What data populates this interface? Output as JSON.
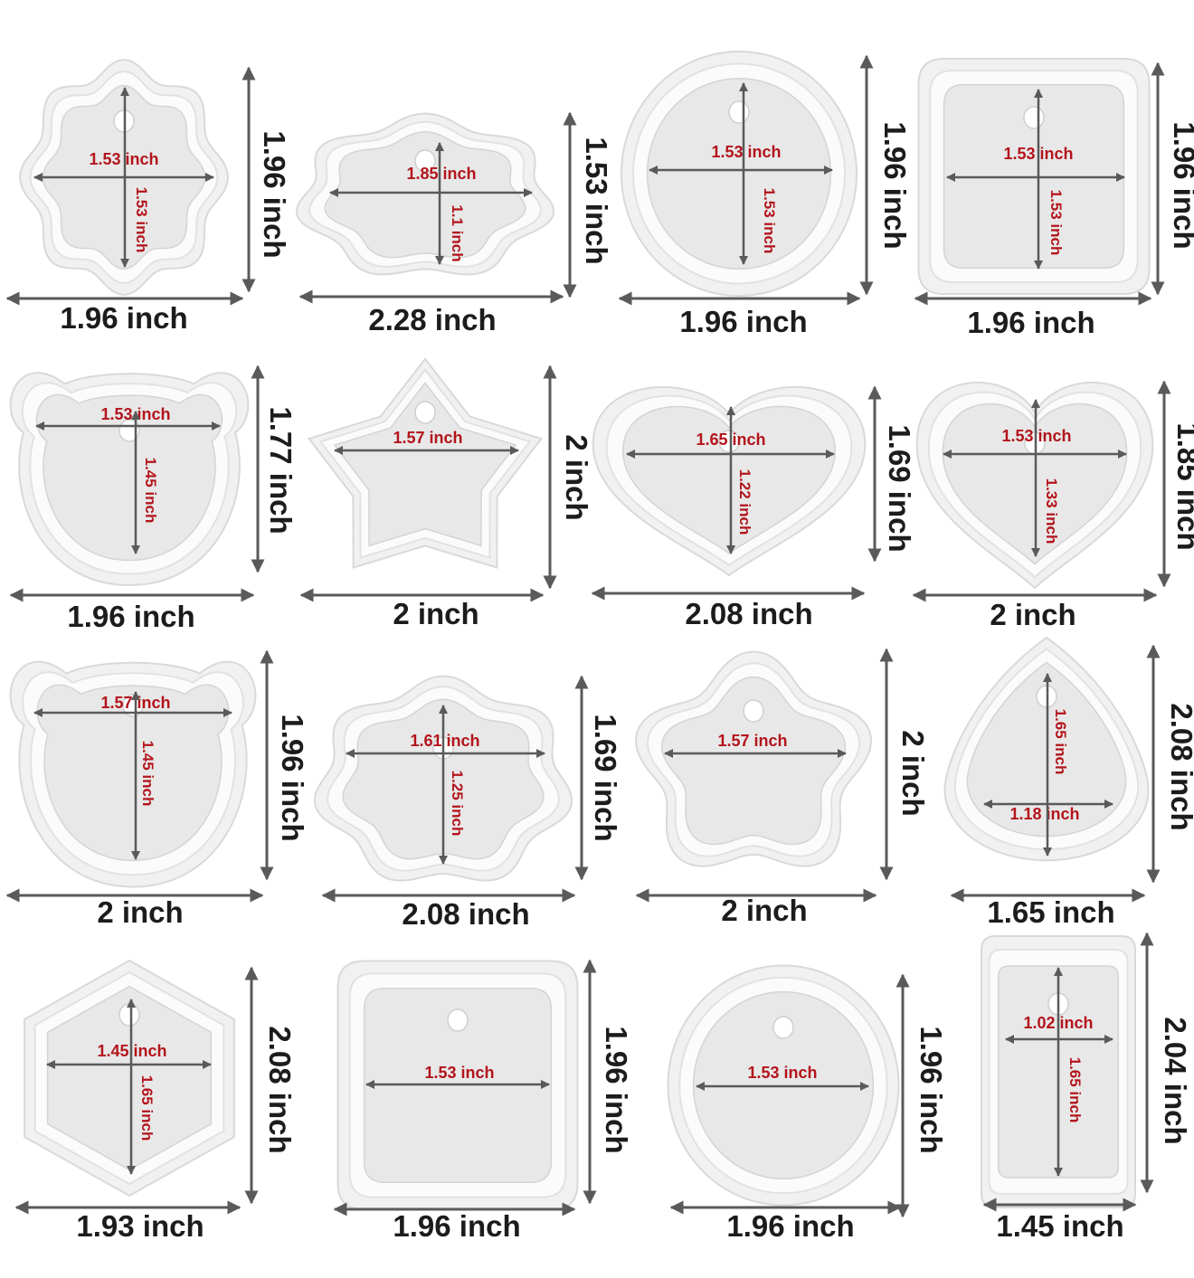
{
  "colors": {
    "background": "#ffffff",
    "mold_rim": "#f1f1f1",
    "mold_edge": "#d9d9d9",
    "cavity": "#e8e8e8",
    "outer_label": "#1c1c1c",
    "inner_label": "#b3141b",
    "arrow": "#5a5a5a"
  },
  "molds": [
    {
      "shape": "flower-scalloped",
      "width_label": "1.96 inch",
      "height_label": "1.96 inch",
      "inner_width_label": "1.53 inch",
      "inner_height_label": "1.53 inch"
    },
    {
      "shape": "cloud",
      "width_label": "2.28 inch",
      "height_label": "1.53 inch",
      "inner_width_label": "1.85 inch",
      "inner_height_label": "1.1 inch"
    },
    {
      "shape": "round-scalloped",
      "width_label": "1.96 inch",
      "height_label": "1.96 inch",
      "inner_width_label": "1.53 inch",
      "inner_height_label": "1.53 inch"
    },
    {
      "shape": "bow-square",
      "width_label": "1.96 inch",
      "height_label": "1.96 inch",
      "inner_width_label": "1.53 inch",
      "inner_height_label": "1.53 inch"
    },
    {
      "shape": "bear-head",
      "width_label": "1.96 inch",
      "height_label": "1.77 inch",
      "inner_width_label": "1.53 inch",
      "inner_height_label": "1.45 inch"
    },
    {
      "shape": "star",
      "width_label": "2 inch",
      "height_label": "2 inch",
      "inner_width_label": "1.57 inch",
      "inner_height_label": ""
    },
    {
      "shape": "heart-wide",
      "width_label": "2.08 inch",
      "height_label": "1.69 inch",
      "inner_width_label": "1.65 inch",
      "inner_height_label": "1.22 inch"
    },
    {
      "shape": "heart",
      "width_label": "2 inch",
      "height_label": "1.85 inch",
      "inner_width_label": "1.53 inch",
      "inner_height_label": "1.33 inch"
    },
    {
      "shape": "bear-head-round",
      "width_label": "2 inch",
      "height_label": "1.96 inch",
      "inner_width_label": "1.57 inch",
      "inner_height_label": "1.45 inch"
    },
    {
      "shape": "cloud-tall",
      "width_label": "2.08 inch",
      "height_label": "1.69 inch",
      "inner_width_label": "1.61 inch",
      "inner_height_label": "1.25 inch"
    },
    {
      "shape": "flower-five",
      "width_label": "2 inch",
      "height_label": "2 inch",
      "inner_width_label": "1.57 inch",
      "inner_height_label": ""
    },
    {
      "shape": "teardrop",
      "width_label": "1.65 inch",
      "height_label": "2.08 inch",
      "inner_width_label": "1.18 inch",
      "inner_height_label": "1.65 inch"
    },
    {
      "shape": "hexagon",
      "width_label": "1.93 inch",
      "height_label": "2.08 inch",
      "inner_width_label": "1.45 inch",
      "inner_height_label": "1.65 inch"
    },
    {
      "shape": "square",
      "width_label": "1.96 inch",
      "height_label": "1.96 inch",
      "inner_width_label": "1.53 inch",
      "inner_height_label": ""
    },
    {
      "shape": "circle",
      "width_label": "1.96 inch",
      "height_label": "1.96 inch",
      "inner_width_label": "1.53 inch",
      "inner_height_label": ""
    },
    {
      "shape": "rectangle",
      "width_label": "1.45 inch",
      "height_label": "2.04 inch",
      "inner_width_label": "1.02 inch",
      "inner_height_label": "1.65 inch"
    }
  ]
}
